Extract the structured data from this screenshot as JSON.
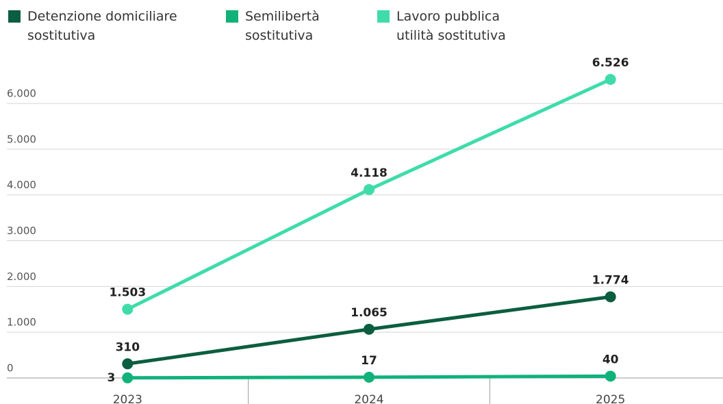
{
  "chart_data": {
    "type": "line",
    "categories": [
      "2023",
      "2024",
      "2025"
    ],
    "series": [
      {
        "name": "Detenzione domiciliare sostitutiva",
        "color": "#0b5e3f",
        "values": [
          310,
          1065,
          1774
        ],
        "value_labels": [
          "310",
          "1.065",
          "1.774"
        ]
      },
      {
        "name": "Semilibertà sostitutiva",
        "color": "#10b27a",
        "values": [
          3,
          17,
          40
        ],
        "value_labels": [
          "3",
          "17",
          "40"
        ]
      },
      {
        "name": "Lavoro pubblica utilità sostitutiva",
        "color": "#3fdcaa",
        "values": [
          1503,
          4118,
          6526
        ],
        "value_labels": [
          "1.503",
          "4.118",
          "6.526"
        ]
      }
    ],
    "ylim": [
      0,
      6600
    ],
    "yticks": [
      0,
      {
        "value": 1000,
        "label": "1.000"
      },
      {
        "value": 2000,
        "label": "2.000"
      },
      {
        "value": 3000,
        "label": "3.000"
      },
      {
        "value": 4000,
        "label": "4.000"
      },
      {
        "value": 5000,
        "label": "5.000"
      },
      {
        "value": 6000,
        "label": "6.000"
      }
    ],
    "grid": true
  }
}
